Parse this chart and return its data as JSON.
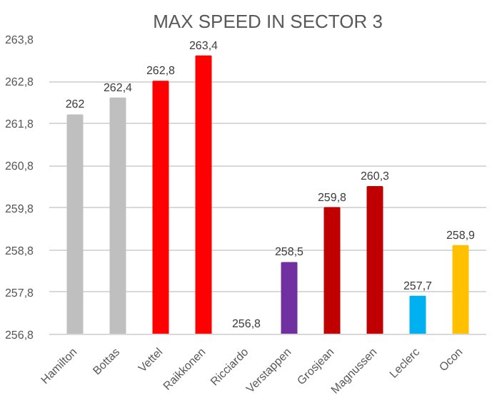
{
  "chart_data": {
    "type": "bar",
    "title": "MAX SPEED IN SECTOR 3",
    "categories": [
      "Hamilton",
      "Bottas",
      "Vettel",
      "Raikkonen",
      "Ricciardo",
      "Verstappen",
      "Grosjean",
      "Magnussen",
      "Leclerc",
      "Ocon"
    ],
    "values": [
      262,
      262.4,
      262.8,
      263.4,
      256.8,
      258.5,
      259.8,
      260.3,
      257.7,
      258.9
    ],
    "value_labels": [
      "262",
      "262,4",
      "262,8",
      "263,4",
      "256,8",
      "258,5",
      "259,8",
      "260,3",
      "257,7",
      "258,9"
    ],
    "colors": [
      "#bfbfbf",
      "#bfbfbf",
      "#ff0000",
      "#ff0000",
      "#0000ff",
      "#7030a0",
      "#c00000",
      "#c00000",
      "#00b0f0",
      "#ffc000"
    ],
    "ylim": [
      256.8,
      263.8
    ],
    "yticks": [
      {
        "value": 256.8,
        "label": "256,8"
      },
      {
        "value": 257.8,
        "label": "257,8"
      },
      {
        "value": 258.8,
        "label": "258,8"
      },
      {
        "value": 259.8,
        "label": "259,8"
      },
      {
        "value": 260.8,
        "label": "260,8"
      },
      {
        "value": 261.8,
        "label": "261,8"
      },
      {
        "value": 262.8,
        "label": "262,8"
      },
      {
        "value": 263.8,
        "label": "263,8"
      }
    ],
    "grid": "y"
  }
}
